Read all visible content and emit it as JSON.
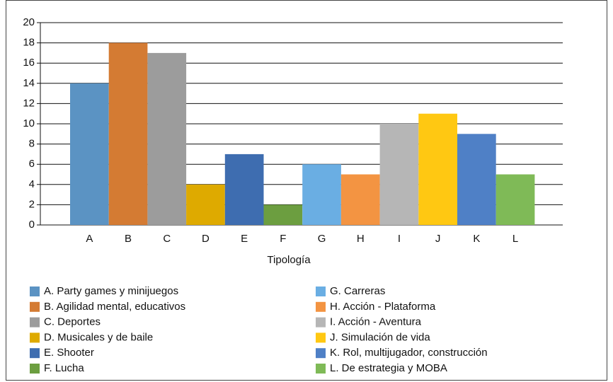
{
  "chart_data": {
    "type": "bar",
    "x_label": "Tipología",
    "categories": [
      "A",
      "B",
      "C",
      "D",
      "E",
      "F",
      "G",
      "H",
      "I",
      "J",
      "K",
      "L"
    ],
    "values": [
      14,
      18,
      17,
      4,
      7,
      2,
      6,
      5,
      10,
      11,
      9,
      5
    ],
    "colors": [
      "#5b93c3",
      "#d47b33",
      "#9c9c9c",
      "#deaa00",
      "#3e6db0",
      "#6c9e40",
      "#6aaee3",
      "#f39442",
      "#b6b6b6",
      "#ffc812",
      "#4f80c6",
      "#7fba57"
    ],
    "legend": [
      "A. Party games y minijuegos",
      "B. Agilidad mental, educativos",
      "C. Deportes",
      "D. Musicales y de baile",
      "E. Shooter",
      "F. Lucha",
      "G. Carreras",
      "H. Acción - Plataforma",
      "I. Acción - Aventura",
      "J. Simulación de vida",
      "K. Rol, multijugador, construcción",
      "L. De estrategia y MOBA"
    ],
    "ylim": [
      0,
      20
    ],
    "yticks": [
      0,
      2,
      4,
      6,
      8,
      10,
      12,
      14,
      16,
      18,
      20
    ],
    "grid": true
  }
}
